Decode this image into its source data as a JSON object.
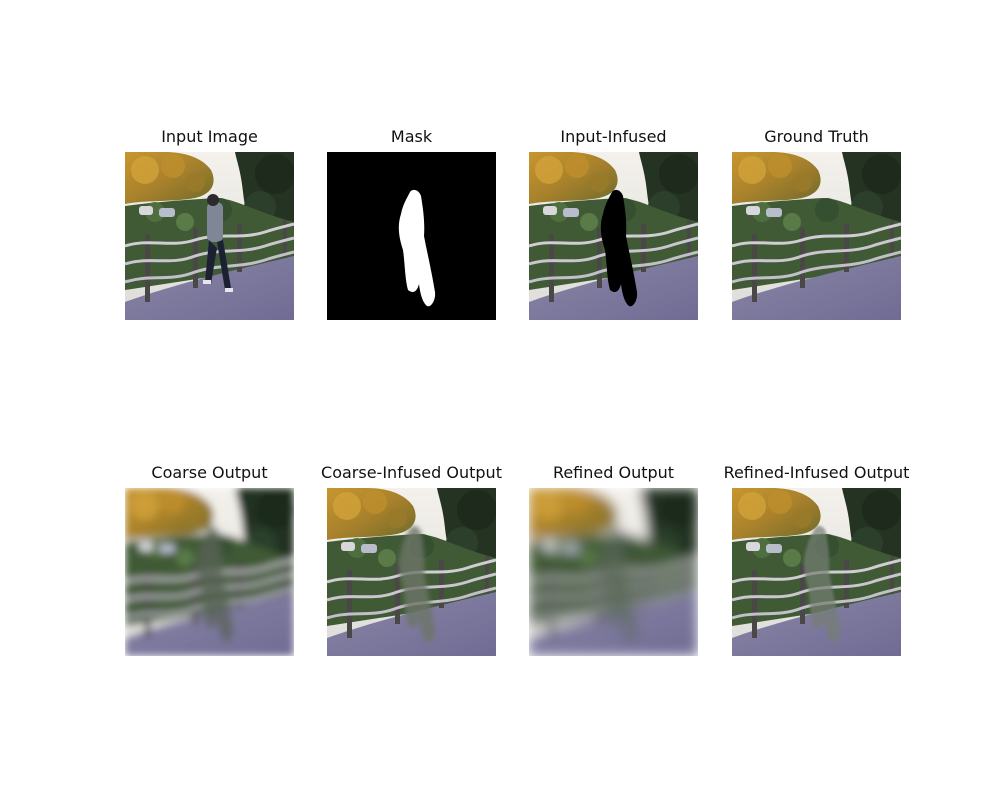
{
  "figure": {
    "panels": [
      {
        "title": "Input Image",
        "kind": "input"
      },
      {
        "title": "Mask",
        "kind": "mask"
      },
      {
        "title": "Input-Infused",
        "kind": "infused"
      },
      {
        "title": "Ground Truth",
        "kind": "truth"
      },
      {
        "title": "Coarse Output",
        "kind": "coarse"
      },
      {
        "title": "Coarse-Infused Output",
        "kind": "coarse-infused"
      },
      {
        "title": "Refined Output",
        "kind": "refined"
      },
      {
        "title": "Refined-Infused Output",
        "kind": "refined-infused"
      }
    ]
  }
}
